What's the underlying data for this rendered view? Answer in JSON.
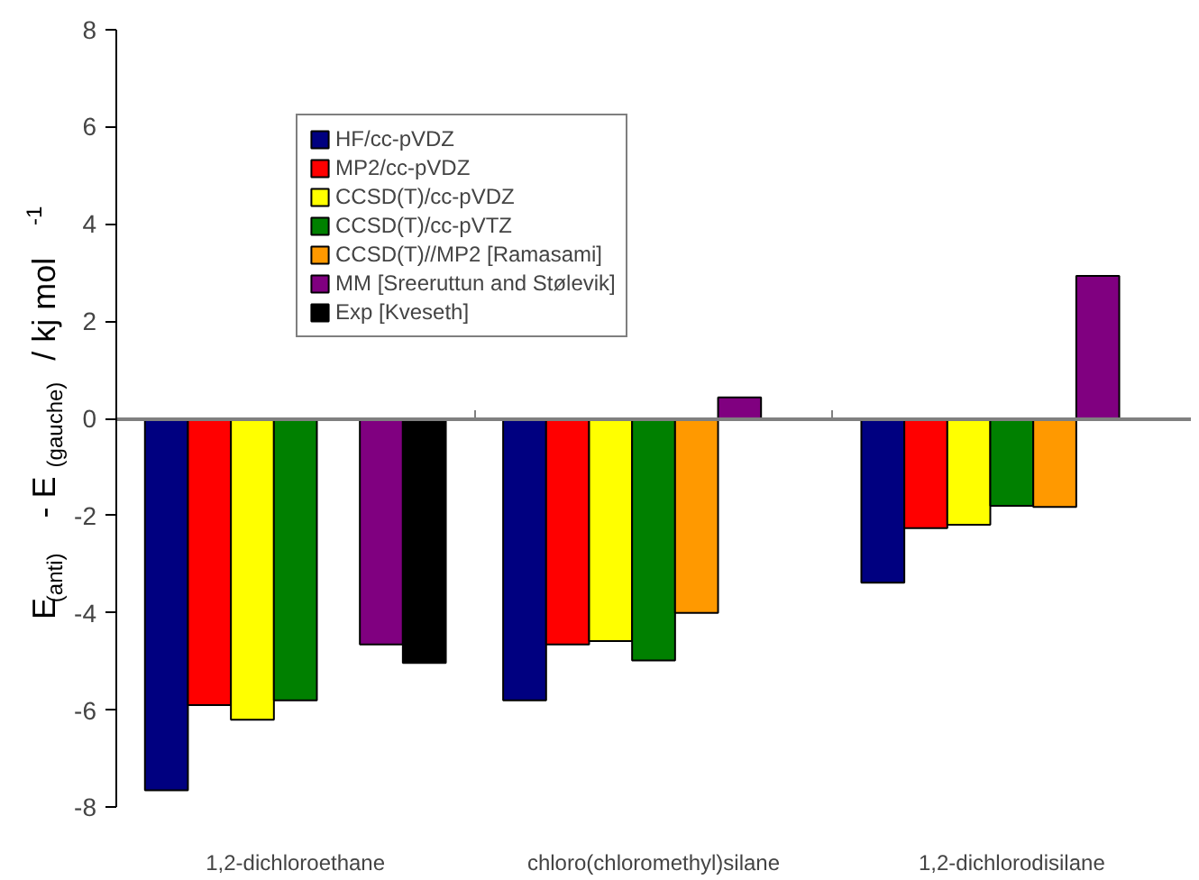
{
  "chart_data": {
    "type": "bar",
    "ylabel": "E$_{(anti)}$ - E$_{(gauche)}$ / kj mol$^{-1}$",
    "categories": [
      "1,2-dichloroethane",
      "chloro(chloromethyl)silane",
      "1,2-dichlorodisilane"
    ],
    "series": [
      {
        "name": "HF/cc-pVDZ",
        "color": "#000080",
        "values": [
          -7.65,
          -5.8,
          -3.38
        ]
      },
      {
        "name": "MP2/cc-pVDZ",
        "color": "#ff0000",
        "values": [
          -5.9,
          -4.65,
          -2.26
        ]
      },
      {
        "name": "CCSD(T)/cc-pVDZ",
        "color": "#ffff00",
        "values": [
          -6.2,
          -4.58,
          -2.19
        ]
      },
      {
        "name": "CCSD(T)/cc-pVTZ",
        "color": "#008000",
        "values": [
          -5.8,
          -4.98,
          -1.8
        ]
      },
      {
        "name": "CCSD(T)//MP2 [Ramasami]",
        "color": "#ff9900",
        "values": [
          null,
          -4.0,
          -1.82
        ]
      },
      {
        "name": "MM [Sreeruttun and Stølevik]",
        "color": "#800080",
        "values": [
          -4.65,
          0.43,
          2.93
        ]
      },
      {
        "name": "Exp [Kveseth]",
        "color": "#000000",
        "values": [
          -5.03,
          null,
          null
        ]
      }
    ],
    "ylim": [
      -8,
      8
    ],
    "yticks": [
      -8,
      -6,
      -4,
      -2,
      0,
      2,
      4,
      6,
      8
    ],
    "legend": "top"
  }
}
